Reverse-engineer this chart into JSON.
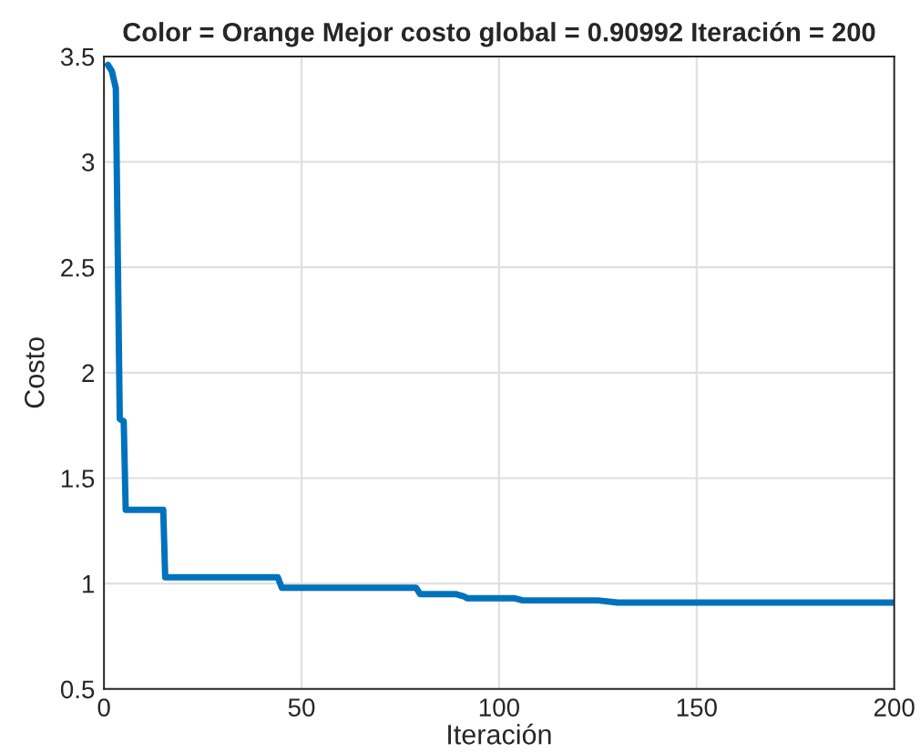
{
  "chart_data": {
    "type": "line",
    "title": "Color = Orange Mejor costo global = 0.90992 Iteración = 200",
    "xlabel": "Iteración",
    "ylabel": "Costo",
    "series": [
      {
        "color": "#0072bd",
        "x": [
          1,
          2,
          3,
          4,
          5,
          5.5,
          15,
          15.5,
          44,
          45,
          79,
          80,
          89,
          91,
          92,
          104,
          106,
          125,
          130,
          200
        ],
        "values": [
          3.46,
          3.43,
          3.35,
          1.78,
          1.77,
          1.35,
          1.35,
          1.03,
          1.03,
          0.98,
          0.98,
          0.95,
          0.95,
          0.94,
          0.93,
          0.93,
          0.92,
          0.92,
          0.91,
          0.91
        ]
      }
    ],
    "xlim": [
      0,
      200
    ],
    "xticks": [
      0,
      50,
      100,
      150,
      200
    ],
    "ylim": [
      0.5,
      3.5
    ],
    "yticks": [
      0.5,
      1,
      1.5,
      2,
      2.5,
      3,
      3.5
    ],
    "grid": true
  }
}
